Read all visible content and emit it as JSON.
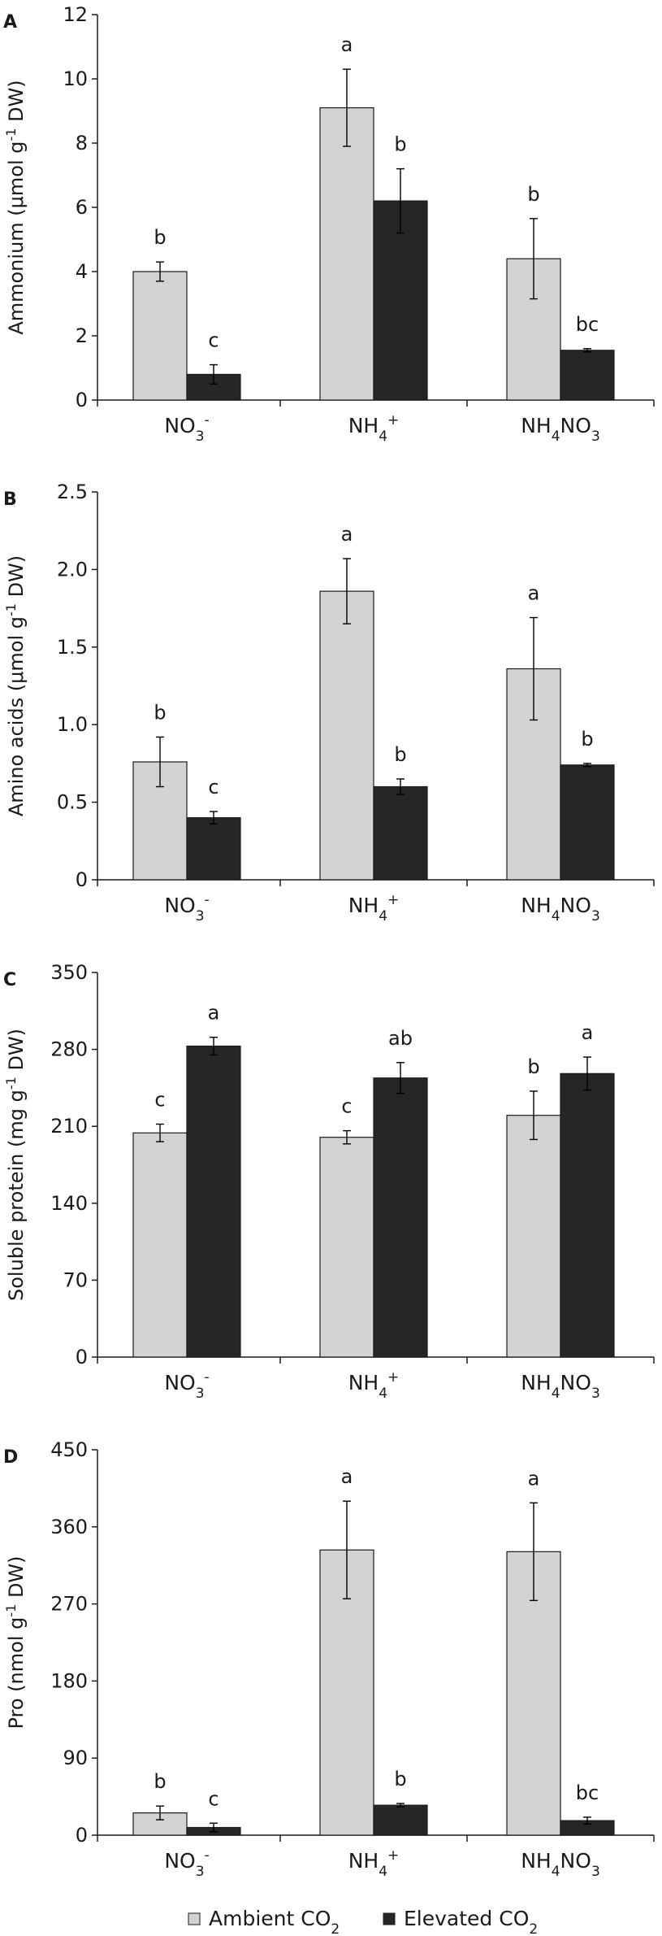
{
  "figure": {
    "legend": {
      "placement": "bottom-center",
      "items": [
        {
          "label": "Ambient CO",
          "sub": "2",
          "color": "#d3d3d3"
        },
        {
          "label": "Elevated CO",
          "sub": "2",
          "color": "#262626"
        }
      ]
    }
  },
  "chart_data": [
    {
      "panel": "A",
      "type": "bar",
      "ylabel": {
        "pre": "Ammonium (μmol g",
        "sup": "-1",
        "post": " DW)"
      },
      "ylim": [
        0,
        12
      ],
      "yticks": [
        0,
        2,
        4,
        6,
        8,
        10,
        12
      ],
      "ytick_labels": [
        "0",
        "2",
        "4",
        "6",
        "8",
        "10",
        "12"
      ],
      "categories": [
        [
          {
            "t": "NO"
          },
          {
            "t": "3",
            "s": "sub"
          },
          {
            "t": "-",
            "s": "sup"
          }
        ],
        [
          {
            "t": "NH"
          },
          {
            "t": "4",
            "s": "sub"
          },
          {
            "t": "+",
            "s": "sup"
          }
        ],
        [
          {
            "t": "NH"
          },
          {
            "t": "4",
            "s": "sub"
          },
          {
            "t": "NO"
          },
          {
            "t": "3",
            "s": "sub"
          }
        ]
      ],
      "series": [
        {
          "name": "Ambient CO2",
          "values": [
            4.0,
            9.1,
            4.4
          ],
          "errors": [
            0.3,
            1.2,
            1.25
          ],
          "letters": [
            "b",
            "a",
            "b"
          ]
        },
        {
          "name": "Elevated CO2",
          "values": [
            0.8,
            6.2,
            1.55
          ],
          "errors": [
            0.3,
            1.0,
            0.05
          ],
          "letters": [
            "c",
            "b",
            "bc"
          ]
        }
      ]
    },
    {
      "panel": "B",
      "type": "bar",
      "ylabel": {
        "pre": "Amino acids (μmol g",
        "sup": "-1",
        "post": " DW)"
      },
      "ylim": [
        0,
        2.5
      ],
      "yticks": [
        0,
        0.5,
        1.0,
        1.5,
        2.0,
        2.5
      ],
      "ytick_labels": [
        "0",
        "0.5",
        "1.0",
        "1.5",
        "2.0",
        "2.5"
      ],
      "categories": [
        [
          {
            "t": "NO"
          },
          {
            "t": "3",
            "s": "sub"
          },
          {
            "t": "-",
            "s": "sup"
          }
        ],
        [
          {
            "t": "NH"
          },
          {
            "t": "4",
            "s": "sub"
          },
          {
            "t": "+",
            "s": "sup"
          }
        ],
        [
          {
            "t": "NH"
          },
          {
            "t": "4",
            "s": "sub"
          },
          {
            "t": "NO"
          },
          {
            "t": "3",
            "s": "sub"
          }
        ]
      ],
      "series": [
        {
          "name": "Ambient CO2",
          "values": [
            0.76,
            1.86,
            1.36
          ],
          "errors": [
            0.16,
            0.21,
            0.33
          ],
          "letters": [
            "b",
            "a",
            "a"
          ]
        },
        {
          "name": "Elevated CO2",
          "values": [
            0.4,
            0.6,
            0.74
          ],
          "errors": [
            0.04,
            0.05,
            0.01
          ],
          "letters": [
            "c",
            "b",
            "b"
          ]
        }
      ]
    },
    {
      "panel": "C",
      "type": "bar",
      "ylabel": {
        "pre": "Soluble protein (mg g",
        "sup": "-1",
        "post": " DW)"
      },
      "ylim": [
        0,
        350
      ],
      "yticks": [
        0,
        70,
        140,
        210,
        280,
        350
      ],
      "ytick_labels": [
        "0",
        "70",
        "140",
        "210",
        "280",
        "350"
      ],
      "categories": [
        [
          {
            "t": "NO"
          },
          {
            "t": "3",
            "s": "sub"
          },
          {
            "t": "-",
            "s": "sup"
          }
        ],
        [
          {
            "t": "NH"
          },
          {
            "t": "4",
            "s": "sub"
          },
          {
            "t": "+",
            "s": "sup"
          }
        ],
        [
          {
            "t": "NH"
          },
          {
            "t": "4",
            "s": "sub"
          },
          {
            "t": "NO"
          },
          {
            "t": "3",
            "s": "sub"
          }
        ]
      ],
      "series": [
        {
          "name": "Ambient CO2",
          "values": [
            204,
            200,
            220
          ],
          "errors": [
            8,
            6,
            22
          ],
          "letters": [
            "c",
            "c",
            "b"
          ]
        },
        {
          "name": "Elevated CO2",
          "values": [
            283,
            254,
            258
          ],
          "errors": [
            8,
            14,
            15
          ],
          "letters": [
            "a",
            "ab",
            "a"
          ]
        }
      ]
    },
    {
      "panel": "D",
      "type": "bar",
      "ylabel": {
        "pre": "Pro (nmol g",
        "sup": "-1",
        "post": " DW)"
      },
      "ylim": [
        0,
        450
      ],
      "yticks": [
        0,
        90,
        180,
        270,
        360,
        450
      ],
      "ytick_labels": [
        "0",
        "90",
        "180",
        "270",
        "360",
        "450"
      ],
      "categories": [
        [
          {
            "t": "NO"
          },
          {
            "t": "3",
            "s": "sub"
          },
          {
            "t": "-",
            "s": "sup"
          }
        ],
        [
          {
            "t": "NH"
          },
          {
            "t": "4",
            "s": "sub"
          },
          {
            "t": "+",
            "s": "sup"
          }
        ],
        [
          {
            "t": "NH"
          },
          {
            "t": "4",
            "s": "sub"
          },
          {
            "t": "NO"
          },
          {
            "t": "3",
            "s": "sub"
          }
        ]
      ],
      "series": [
        {
          "name": "Ambient CO2",
          "values": [
            26,
            333,
            331
          ],
          "errors": [
            8,
            57,
            57
          ],
          "letters": [
            "b",
            "a",
            "a"
          ]
        },
        {
          "name": "Elevated CO2",
          "values": [
            9,
            35,
            17
          ],
          "errors": [
            5,
            2,
            4
          ],
          "letters": [
            "c",
            "b",
            "bc"
          ]
        }
      ]
    }
  ]
}
